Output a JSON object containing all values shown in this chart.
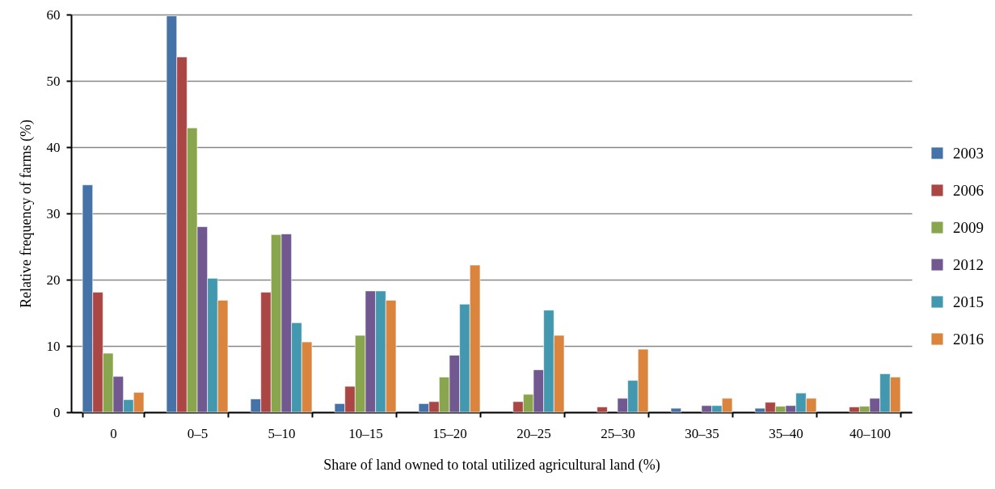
{
  "chart_data": {
    "type": "bar",
    "xlabel": "Share of land owned to total utilized agricultural land (%)",
    "ylabel": "Relative frequency of farms (%)",
    "categories": [
      "0",
      "0–5",
      "5–10",
      "10–15",
      "15–20",
      "20–25",
      "25–30",
      "30–35",
      "35–40",
      "40–100"
    ],
    "series": [
      {
        "name": "2003",
        "color": "#4572a7",
        "values": [
          34.3,
          59.8,
          2.0,
          1.3,
          1.3,
          null,
          null,
          0.6,
          0.6,
          null
        ]
      },
      {
        "name": "2006",
        "color": "#aa4643",
        "values": [
          18.1,
          53.6,
          18.1,
          3.9,
          1.6,
          1.6,
          0.8,
          null,
          1.5,
          0.8
        ]
      },
      {
        "name": "2009",
        "color": "#89a54e",
        "values": [
          8.9,
          42.9,
          26.8,
          11.6,
          5.3,
          2.7,
          null,
          null,
          0.9,
          0.9
        ]
      },
      {
        "name": "2012",
        "color": "#71588f",
        "values": [
          5.4,
          28.0,
          26.9,
          18.3,
          8.6,
          6.4,
          2.1,
          1.0,
          1.0,
          2.1
        ]
      },
      {
        "name": "2015",
        "color": "#4198af",
        "values": [
          1.9,
          20.2,
          13.5,
          18.3,
          16.3,
          15.4,
          4.8,
          1.0,
          2.9,
          5.8
        ]
      },
      {
        "name": "2016",
        "color": "#db843d",
        "values": [
          3.0,
          16.9,
          10.6,
          16.9,
          22.2,
          11.6,
          9.5,
          2.1,
          2.1,
          5.3
        ]
      }
    ],
    "ylim": [
      0,
      60
    ],
    "yticks": [
      0,
      10,
      20,
      30,
      40,
      50,
      60
    ],
    "grid": "y",
    "legend": "right"
  }
}
